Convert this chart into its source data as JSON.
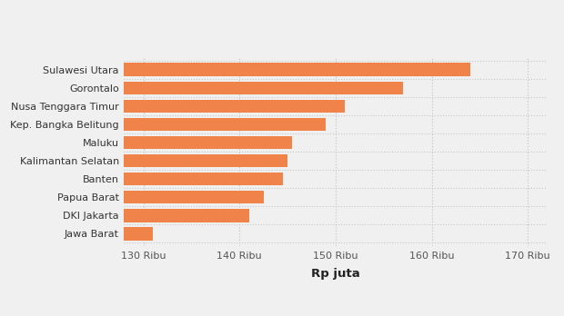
{
  "categories": [
    "Jawa Barat",
    "DKI Jakarta",
    "Papua Barat",
    "Banten",
    "Kalimantan Selatan",
    "Maluku",
    "Kep. Bangka Belitung",
    "Nusa Tenggara Timur",
    "Gorontalo",
    "Sulawesi Utara"
  ],
  "values": [
    131000,
    141000,
    142500,
    144500,
    145000,
    145500,
    149000,
    151000,
    157000,
    164000
  ],
  "bar_color": "#f0834a",
  "xlabel": "Rp juta",
  "xlim": [
    128000,
    172000
  ],
  "xticks": [
    130000,
    140000,
    150000,
    160000,
    170000
  ],
  "xtick_labels": [
    "130 Ribu",
    "140 Ribu",
    "150 Ribu",
    "160 Ribu",
    "170 Ribu"
  ],
  "background_color": "#f0f0f0",
  "bar_height": 0.72,
  "grid_color": "#c8c8c8",
  "label_fontsize": 8.0,
  "xlabel_fontsize": 9.5,
  "tick_fontsize": 8.0
}
